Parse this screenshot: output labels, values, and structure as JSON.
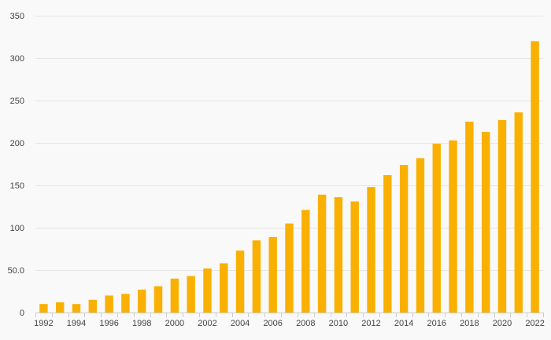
{
  "chart_data": {
    "type": "bar",
    "title": "",
    "xlabel": "",
    "ylabel": "",
    "categories": [
      "1992",
      "1993",
      "1994",
      "1995",
      "1996",
      "1997",
      "1998",
      "1999",
      "2000",
      "2001",
      "2002",
      "2003",
      "2004",
      "2005",
      "2006",
      "2007",
      "2008",
      "2009",
      "2010",
      "2011",
      "2012",
      "2013",
      "2014",
      "2015",
      "2016",
      "2017",
      "2018",
      "2019",
      "2020",
      "2021",
      "2022"
    ],
    "x_tick_labels": [
      "1992",
      "1994",
      "1996",
      "1998",
      "2000",
      "2002",
      "2004",
      "2006",
      "2008",
      "2010",
      "2012",
      "2014",
      "2016",
      "2018",
      "2020",
      "2022"
    ],
    "values": [
      10,
      12,
      10,
      15,
      20,
      22,
      27,
      31,
      40,
      43,
      52,
      58,
      73,
      85,
      89,
      105,
      121,
      139,
      136,
      131,
      148,
      162,
      174,
      182,
      199,
      203,
      225,
      213,
      227,
      236,
      320
    ],
    "ylim": [
      0,
      350
    ],
    "y_ticks": [
      0,
      50,
      100,
      150,
      200,
      250,
      300,
      350
    ],
    "y_tick_labels": [
      "0",
      "50.0",
      "100",
      "150",
      "200",
      "250",
      "300",
      "350"
    ],
    "grid": true,
    "legend": "none",
    "bar_color": "#f9b000",
    "background_color": "#f9f9f9",
    "grid_color": "#e6e6e6",
    "axis_color": "#cccccc",
    "tick_label_color": "#444444"
  }
}
